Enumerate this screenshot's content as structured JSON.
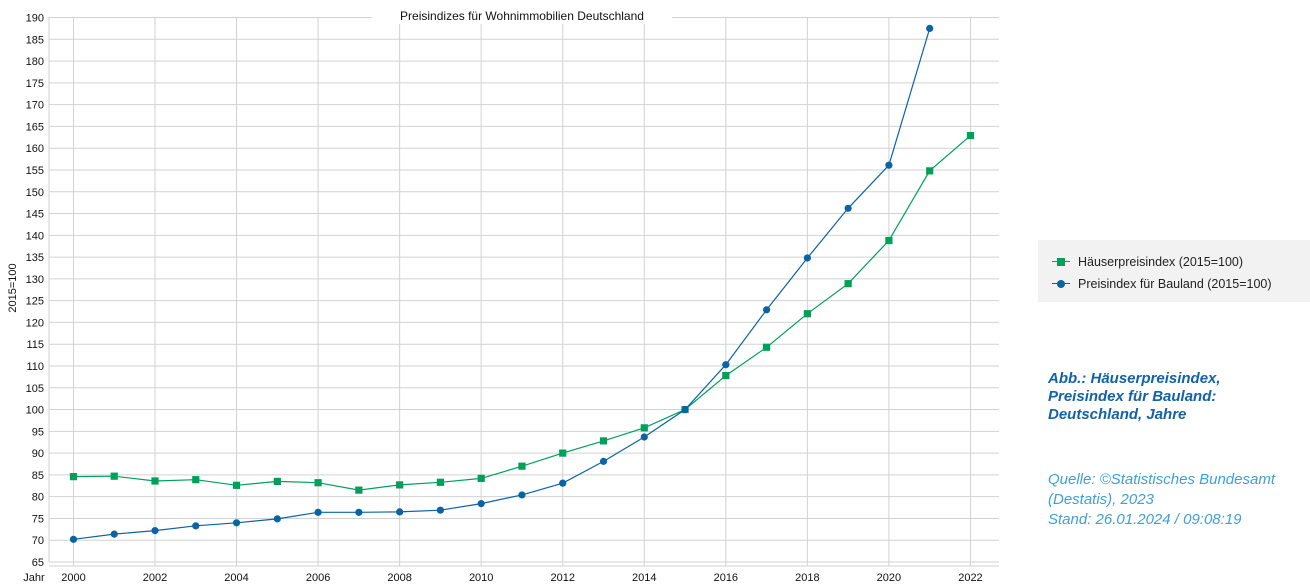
{
  "chart_data": {
    "type": "line",
    "title": "Preisindizes für Wohnimmobilien Deutschland",
    "xlabel": "Jahr",
    "ylabel": "2015=100",
    "ylim": [
      65,
      190
    ],
    "yticks": [
      65,
      70,
      75,
      80,
      85,
      90,
      95,
      100,
      105,
      110,
      115,
      120,
      125,
      130,
      135,
      140,
      145,
      150,
      155,
      160,
      165,
      170,
      175,
      180,
      185,
      190
    ],
    "xlim": [
      1999.4,
      2022.7
    ],
    "xticks": [
      2000,
      2002,
      2004,
      2006,
      2008,
      2010,
      2012,
      2014,
      2016,
      2018,
      2020,
      2022
    ],
    "grid": true,
    "legend_position": "right",
    "series": [
      {
        "name": "Häuserpreisindex (2015=100)",
        "color": "#00a05a",
        "marker": "square",
        "x": [
          2000,
          2001,
          2002,
          2003,
          2004,
          2005,
          2006,
          2007,
          2008,
          2009,
          2010,
          2011,
          2012,
          2013,
          2014,
          2015,
          2016,
          2017,
          2018,
          2019,
          2020,
          2021,
          2022
        ],
        "values": [
          84.6,
          84.7,
          83.6,
          83.9,
          82.6,
          83.5,
          83.2,
          81.5,
          82.7,
          83.3,
          84.2,
          87.0,
          90.0,
          92.8,
          95.8,
          100.0,
          107.8,
          114.3,
          122.0,
          128.9,
          138.8,
          154.8,
          162.9
        ]
      },
      {
        "name": "Preisindex für Bauland (2015=100)",
        "color": "#0a64a4",
        "marker": "circle",
        "x": [
          2000,
          2001,
          2002,
          2003,
          2004,
          2005,
          2006,
          2007,
          2008,
          2009,
          2010,
          2011,
          2012,
          2013,
          2014,
          2015,
          2016,
          2017,
          2018,
          2019,
          2020,
          2021
        ],
        "values": [
          70.2,
          71.4,
          72.2,
          73.3,
          74.0,
          74.9,
          76.4,
          76.4,
          76.5,
          76.9,
          78.4,
          80.4,
          83.1,
          88.1,
          93.7,
          100.0,
          110.3,
          122.9,
          134.8,
          146.2,
          156.1,
          187.5
        ]
      }
    ]
  },
  "caption": {
    "lines": [
      "Abb.: Häuserpreisindex,",
      "Preisindex für Bauland:",
      "Deutschland, Jahre"
    ]
  },
  "source": {
    "line1": "Quelle: ©Statistisches Bundesamt",
    "line2": "(Destatis), 2023",
    "line3": "Stand: 26.01.2024 / 09:08:19"
  }
}
